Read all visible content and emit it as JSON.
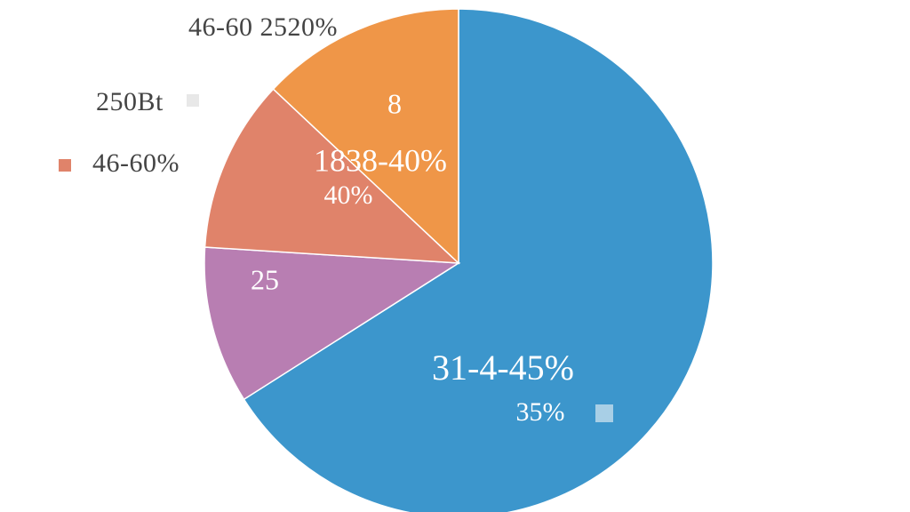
{
  "chart_data": {
    "type": "pie",
    "title": "",
    "slices": [
      {
        "label": "31-4-45%",
        "sub_label": "35%",
        "value": 66,
        "color": "#3c96cc",
        "label_color": "#ffffff"
      },
      {
        "label": "25",
        "sub_label": "",
        "value": 10,
        "color": "#b87eb2",
        "label_color": "#ffffff"
      },
      {
        "label": "1838-40%",
        "sub_label": "40%",
        "value": 11,
        "color": "#e0836a",
        "label_color": "#ffffff"
      },
      {
        "label": "8",
        "sub_label": "",
        "value": 13,
        "color": "#ef9648",
        "label_color": "#ffffff"
      }
    ],
    "legend": {
      "placement": "top-left",
      "entries": [
        {
          "text": "46-60 2520%",
          "swatch_color": ""
        },
        {
          "text": "250Bt",
          "swatch_color": "#e8e8e8"
        },
        {
          "text": "46-60%",
          "swatch_color": "#e0836a"
        }
      ]
    },
    "stray_marker_color": "#a8cfe6"
  }
}
